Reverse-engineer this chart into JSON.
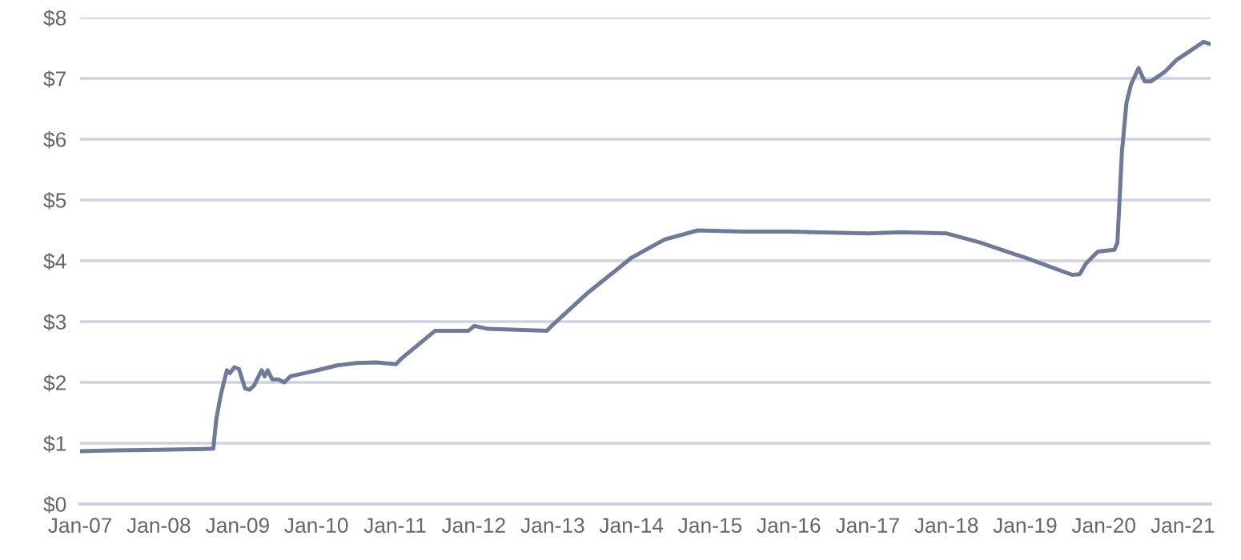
{
  "chart_data": {
    "type": "line",
    "x": [
      "2007-01-03",
      "2007-06-06",
      "2008-01-02",
      "2008-06-04",
      "2008-09-10",
      "2008-09-24",
      "2008-10-15",
      "2008-11-12",
      "2008-11-26",
      "2008-12-17",
      "2009-01-07",
      "2009-02-04",
      "2009-02-25",
      "2009-03-18",
      "2009-04-08",
      "2009-04-22",
      "2009-05-06",
      "2009-05-20",
      "2009-06-10",
      "2009-07-08",
      "2009-08-05",
      "2009-09-02",
      "2009-11-04",
      "2010-01-06",
      "2010-04-07",
      "2010-07-07",
      "2010-10-06",
      "2011-01-05",
      "2011-02-02",
      "2011-07-06",
      "2011-12-07",
      "2012-01-04",
      "2012-03-07",
      "2012-12-05",
      "2013-01-02",
      "2013-06-05",
      "2014-01-01",
      "2014-06-04",
      "2014-11-05",
      "2015-06-03",
      "2016-01-06",
      "2017-01-04",
      "2017-06-07",
      "2018-01-03",
      "2018-06-06",
      "2019-01-02",
      "2019-08-07",
      "2019-09-11",
      "2019-10-09",
      "2019-12-04",
      "2020-02-19",
      "2020-03-04",
      "2020-03-25",
      "2020-04-15",
      "2020-05-06",
      "2020-06-10",
      "2020-07-08",
      "2020-08-05",
      "2020-10-07",
      "2020-12-02",
      "2021-02-03",
      "2021-03-17",
      "2021-04-07",
      "2021-05-05"
    ],
    "series": [
      {
        "color": "#6f7a99",
        "values": [
          0.87,
          0.88,
          0.89,
          0.9,
          0.91,
          1.4,
          1.8,
          2.2,
          2.15,
          2.25,
          2.22,
          1.9,
          1.88,
          1.95,
          2.1,
          2.2,
          2.1,
          2.2,
          2.05,
          2.05,
          2.0,
          2.1,
          2.15,
          2.2,
          2.28,
          2.32,
          2.33,
          2.3,
          2.4,
          2.85,
          2.85,
          2.93,
          2.88,
          2.85,
          2.95,
          3.45,
          4.05,
          4.35,
          4.5,
          4.48,
          4.48,
          4.45,
          4.47,
          4.45,
          4.3,
          4.05,
          3.77,
          3.78,
          3.95,
          4.15,
          4.18,
          4.3,
          5.8,
          6.6,
          6.9,
          7.17,
          6.95,
          6.95,
          7.1,
          7.3,
          7.45,
          7.55,
          7.6,
          7.57
        ]
      }
    ],
    "xlim": [
      "2007-01-01",
      "2021-05-10"
    ],
    "xticks": [
      {
        "value": "2007-01-01",
        "label": "Jan-07"
      },
      {
        "value": "2008-01-01",
        "label": "Jan-08"
      },
      {
        "value": "2009-01-01",
        "label": "Jan-09"
      },
      {
        "value": "2010-01-01",
        "label": "Jan-10"
      },
      {
        "value": "2011-01-01",
        "label": "Jan-11"
      },
      {
        "value": "2012-01-01",
        "label": "Jan-12"
      },
      {
        "value": "2013-01-01",
        "label": "Jan-13"
      },
      {
        "value": "2014-01-01",
        "label": "Jan-14"
      },
      {
        "value": "2015-01-01",
        "label": "Jan-15"
      },
      {
        "value": "2016-01-01",
        "label": "Jan-16"
      },
      {
        "value": "2017-01-01",
        "label": "Jan-17"
      },
      {
        "value": "2018-01-01",
        "label": "Jan-18"
      },
      {
        "value": "2019-01-01",
        "label": "Jan-19"
      },
      {
        "value": "2020-01-01",
        "label": "Jan-20"
      },
      {
        "value": "2021-01-01",
        "label": "Jan-21"
      }
    ],
    "ylim": [
      0,
      8
    ],
    "yticks": [
      {
        "value": 0,
        "label": "$0"
      },
      {
        "value": 1,
        "label": "$1"
      },
      {
        "value": 2,
        "label": "$2"
      },
      {
        "value": 3,
        "label": "$3"
      },
      {
        "value": 4,
        "label": "$4"
      },
      {
        "value": 5,
        "label": "$5"
      },
      {
        "value": 6,
        "label": "$6"
      },
      {
        "value": 7,
        "label": "$7"
      },
      {
        "value": 8,
        "label": "$8"
      }
    ],
    "grid": "y",
    "line_style": "solid",
    "marker": "none"
  }
}
